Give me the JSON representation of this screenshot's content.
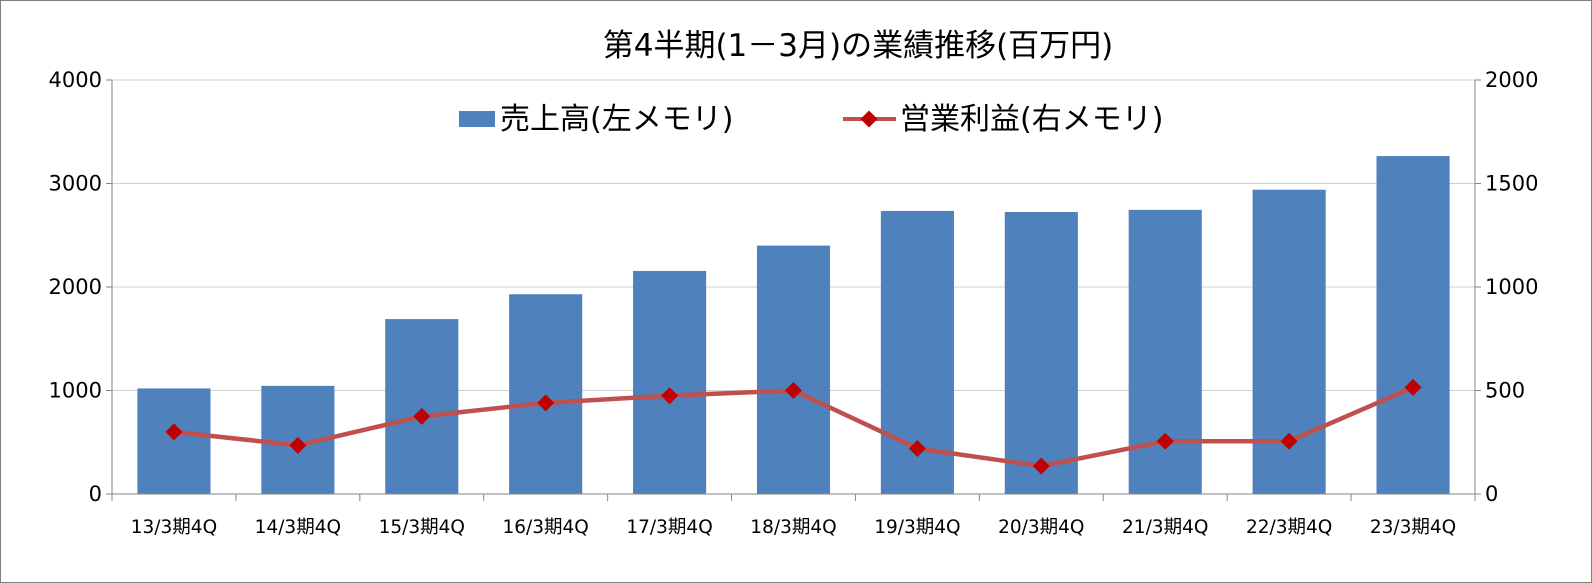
{
  "chart_data": {
    "type": "bar",
    "title": "第4半期(1－3月)の業績推移(百万円)",
    "categories": [
      "13/3期4Q",
      "14/3期4Q",
      "15/3期4Q",
      "16/3期4Q",
      "17/3期4Q",
      "18/3期4Q",
      "19/3期4Q",
      "20/3期4Q",
      "21/3期4Q",
      "22/3期4Q",
      "23/3期4Q"
    ],
    "series": [
      {
        "name": "売上高(左メモリ)",
        "kind": "bar",
        "axis": "left",
        "color": "#4f81bd",
        "values": [
          1020,
          1045,
          1690,
          1930,
          2155,
          2400,
          2735,
          2725,
          2745,
          2940,
          3265
        ]
      },
      {
        "name": "営業利益(右メモリ)",
        "kind": "line",
        "axis": "right",
        "color": "#c0504d",
        "marker_color": "#c00000",
        "values": [
          300,
          235,
          375,
          440,
          475,
          500,
          220,
          135,
          255,
          255,
          515
        ]
      }
    ],
    "y_left": {
      "min": 0,
      "max": 4000,
      "ticks": [
        "0",
        "1000",
        "2000",
        "3000",
        "4000"
      ]
    },
    "y_right": {
      "min": 0,
      "max": 2000,
      "ticks": [
        "0",
        "500",
        "1000",
        "1500",
        "2000"
      ]
    },
    "grid": true,
    "legend_position": "top"
  }
}
